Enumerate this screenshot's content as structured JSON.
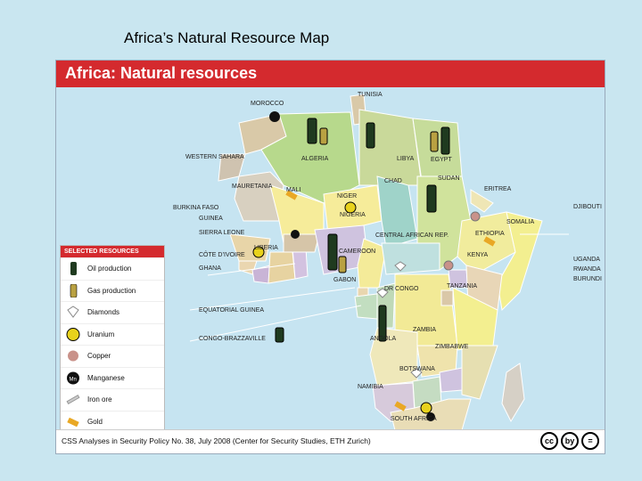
{
  "slide": {
    "title": "Africa’s Natural Resource Map"
  },
  "map": {
    "header": "Africa: Natural resources",
    "countries": [
      "TUNISIA",
      "MOROCCO",
      "WESTERN SAHARA",
      "ALGERIA",
      "LIBYA",
      "EGYPT",
      "SUDAN",
      "MAURETANIA",
      "MALI",
      "NIGER",
      "CHAD",
      "ERITREA",
      "DJIBOUTI",
      "SOMALIA",
      "ETHIOPIA",
      "BURKINA FASO",
      "GUINEA",
      "SIERRA LEONE",
      "LIBERIA",
      "CÔTE D’IVOIRE",
      "GHANA",
      "NIGERIA",
      "CENTRAL AFRICAN REP.",
      "CAMEROON",
      "GABON",
      "EQUATORIAL GUINEA",
      "CONGO-BRAZZAVILLE",
      "DR CONGO",
      "KENYA",
      "UGANDA",
      "RWANDA",
      "BURUNDI",
      "TANZANIA",
      "ZAMBIA",
      "ANGOLA",
      "ZIMBABWE",
      "BOTSWANA",
      "NAMIBIA",
      "SOUTH AFRICA"
    ]
  },
  "legend": {
    "title": "SELECTED RESOURCES",
    "items": [
      {
        "label": "Oil production",
        "icon": "oil-barrel-icon"
      },
      {
        "label": "Gas production",
        "icon": "gas-barrel-icon"
      },
      {
        "label": "Diamonds",
        "icon": "diamond-icon"
      },
      {
        "label": "Uranium",
        "icon": "uranium-icon"
      },
      {
        "label": "Copper",
        "icon": "copper-icon"
      },
      {
        "label": "Manganese",
        "icon": "manganese-icon"
      },
      {
        "label": "Iron ore",
        "icon": "iron-ore-icon"
      },
      {
        "label": "Gold",
        "icon": "gold-icon"
      }
    ]
  },
  "footer": {
    "source": "CSS Analyses in Security Policy No. 38, July 2008 (Center for Security Studies, ETH Zurich)",
    "badges": [
      "cc",
      "by",
      "="
    ]
  },
  "colors": {
    "header_red": "#d42a2e",
    "ocean": "#c6e4f1"
  }
}
